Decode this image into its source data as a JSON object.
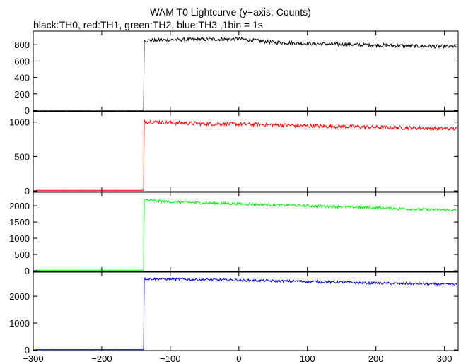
{
  "title": "WAM T0 Lightcurve (y−axis: Counts)",
  "subtitle": "black:TH0, red:TH1, green:TH2, blue:TH3 ,1bin = 1s",
  "chart_data": {
    "type": "line",
    "x_range": [
      -300,
      320
    ],
    "x_ticks": [
      -300,
      -200,
      -100,
      0,
      100,
      200,
      300
    ],
    "x_tick_labels": [
      "−300",
      "−200",
      "−100",
      "0",
      "100",
      "200",
      "300"
    ],
    "step_time": -138,
    "grid": false,
    "panels": [
      {
        "series": "TH0",
        "color": "#000000",
        "ylim": [
          0,
          940
        ],
        "y_ticks": [
          0,
          200,
          400,
          600,
          800
        ],
        "y_tick_labels": [
          "0",
          "200",
          "400",
          "600",
          "800"
        ],
        "baseline": 3,
        "points": [
          [
            -138,
            850
          ],
          [
            -100,
            860
          ],
          [
            -50,
            865
          ],
          [
            0,
            870
          ],
          [
            50,
            830
          ],
          [
            100,
            815
          ],
          [
            150,
            805
          ],
          [
            200,
            795
          ],
          [
            250,
            785
          ],
          [
            320,
            775
          ]
        ],
        "noise": 22
      },
      {
        "series": "TH1",
        "color": "#ff0000",
        "ylim": [
          0,
          1120
        ],
        "y_ticks": [
          0,
          500,
          1000
        ],
        "y_tick_labels": [
          "0",
          "500",
          "1000"
        ],
        "baseline": 8,
        "points": [
          [
            -138,
            1010
          ],
          [
            -100,
            990
          ],
          [
            -50,
            975
          ],
          [
            0,
            970
          ],
          [
            50,
            960
          ],
          [
            100,
            945
          ],
          [
            150,
            935
          ],
          [
            200,
            925
          ],
          [
            250,
            915
          ],
          [
            320,
            900
          ]
        ],
        "noise": 28
      },
      {
        "series": "TH2",
        "color": "#00ee00",
        "ylim": [
          0,
          2350
        ],
        "y_ticks": [
          0,
          500,
          1000,
          1500,
          2000
        ],
        "y_tick_labels": [
          "0",
          "500",
          "1000",
          "1500",
          "2000"
        ],
        "baseline": 15,
        "points": [
          [
            -138,
            2180
          ],
          [
            -100,
            2120
          ],
          [
            -50,
            2090
          ],
          [
            0,
            2060
          ],
          [
            50,
            2030
          ],
          [
            100,
            2000
          ],
          [
            150,
            1970
          ],
          [
            200,
            1940
          ],
          [
            250,
            1900
          ],
          [
            320,
            1860
          ]
        ],
        "noise": 40
      },
      {
        "series": "TH3",
        "color": "#0000dd",
        "ylim": [
          0,
          2820
        ],
        "y_ticks": [
          0,
          1000,
          2000
        ],
        "y_tick_labels": [
          "0",
          "1000",
          "2000"
        ],
        "baseline": 10,
        "points": [
          [
            -138,
            2650
          ],
          [
            -100,
            2640
          ],
          [
            -50,
            2620
          ],
          [
            0,
            2600
          ],
          [
            50,
            2570
          ],
          [
            100,
            2550
          ],
          [
            150,
            2520
          ],
          [
            200,
            2490
          ],
          [
            250,
            2470
          ],
          [
            320,
            2440
          ]
        ],
        "noise": 45
      }
    ]
  }
}
